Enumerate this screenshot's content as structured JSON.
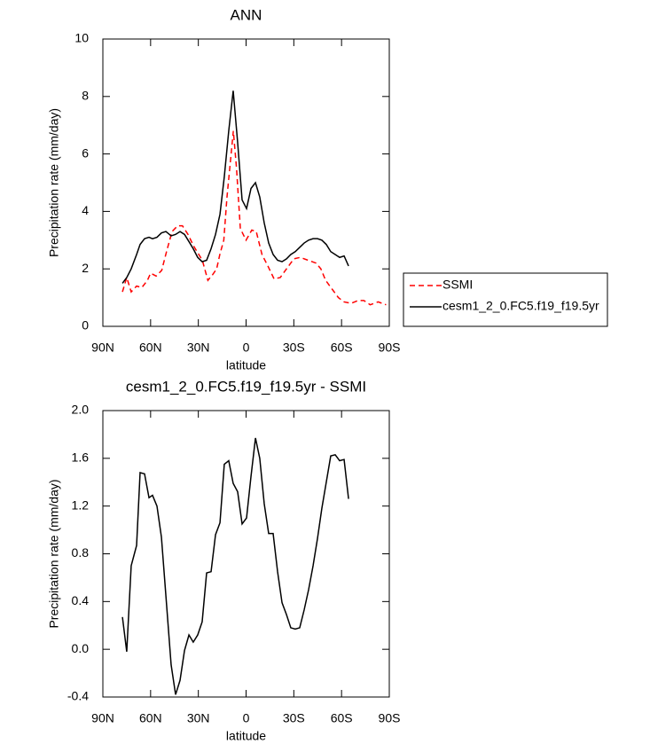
{
  "chart_data": [
    {
      "type": "line",
      "title": "ANN",
      "x_label": "latitude",
      "y_label": "Precipitation rate (mm/day)",
      "xlim": [
        90,
        -90
      ],
      "xticks": [
        {
          "value": 90,
          "label": "90N"
        },
        {
          "value": 60,
          "label": "60N"
        },
        {
          "value": 30,
          "label": "30N"
        },
        0,
        {
          "value": -30,
          "label": "30S"
        },
        {
          "value": -60,
          "label": "60S"
        },
        {
          "value": -90,
          "label": "90S"
        }
      ],
      "ylim": [
        0,
        10
      ],
      "yticks": [
        0,
        2,
        4,
        6,
        8,
        10
      ],
      "legend": "right",
      "series": [
        {
          "name": "SSMI",
          "color": "#ff0000",
          "dashed": true,
          "x": [
            77.7,
            75,
            72.2,
            68.8,
            65.5,
            62,
            60,
            56.5,
            53,
            50,
            46.5,
            43,
            40,
            36.5,
            33,
            27.5,
            24,
            21,
            18.5,
            16.5,
            14,
            12,
            8,
            6,
            3.6,
            0,
            -3.6,
            -6.4,
            -10,
            -13.7,
            -17.6,
            -21.5,
            -25.4,
            -30,
            -34,
            -39,
            -44,
            -47,
            -50,
            -54,
            -58,
            -61.6,
            -66,
            -70.5,
            -74,
            -78,
            -83,
            -88
          ],
          "values": [
            1.2,
            1.7,
            1.2,
            1.4,
            1.35,
            1.6,
            1.85,
            1.75,
            1.95,
            2.6,
            3.3,
            3.5,
            3.5,
            3.2,
            2.8,
            2.3,
            1.6,
            1.8,
            2.0,
            2.5,
            3.0,
            4.5,
            6.8,
            5.5,
            3.4,
            3.0,
            3.35,
            3.3,
            2.5,
            2.1,
            1.65,
            1.7,
            2.0,
            2.35,
            2.4,
            2.3,
            2.2,
            2.0,
            1.6,
            1.3,
            1.0,
            0.85,
            0.8,
            0.9,
            0.9,
            0.75,
            0.85,
            0.75
          ]
        },
        {
          "name": "cesm1_2_0.FC5.f19_f19.5yr",
          "color": "#000000",
          "dashed": false,
          "x": [
            77.7,
            75.0,
            72.2,
            68.8,
            66.6,
            63.8,
            61.0,
            58.8,
            56.0,
            53.2,
            50.4,
            47.1,
            44.3,
            41.5,
            38.7,
            35.9,
            33.2,
            30.4,
            27.6,
            24.8,
            22.0,
            19.2,
            16.4,
            13.7,
            10.9,
            8.1,
            5.3,
            2.5,
            -0.3,
            -3.1,
            -5.9,
            -8.6,
            -11.4,
            -14.2,
            -17.0,
            -19.8,
            -22.6,
            -25.4,
            -28.1,
            -30.9,
            -33.7,
            -36.5,
            -39.3,
            -42.1,
            -44.9,
            -47.6,
            -50.4,
            -53.2,
            -56.0,
            -58.8,
            -61.6,
            -64.4
          ],
          "values": [
            1.5,
            1.7,
            2.0,
            2.5,
            2.85,
            3.05,
            3.1,
            3.05,
            3.1,
            3.25,
            3.3,
            3.15,
            3.2,
            3.3,
            3.2,
            2.95,
            2.7,
            2.4,
            2.25,
            2.3,
            2.7,
            3.2,
            3.9,
            5.2,
            6.8,
            8.2,
            6.4,
            4.4,
            4.1,
            4.8,
            5.0,
            4.5,
            3.6,
            2.9,
            2.5,
            2.3,
            2.25,
            2.35,
            2.5,
            2.6,
            2.75,
            2.9,
            3.0,
            3.05,
            3.05,
            3.0,
            2.85,
            2.6,
            2.5,
            2.4,
            2.45,
            2.1
          ]
        }
      ]
    },
    {
      "type": "line",
      "title": "cesm1_2_0.FC5.f19_f19.5yr - SSMI",
      "x_label": "latitude",
      "y_label": "Precipitation rate (mm/day)",
      "xlim": [
        90,
        -90
      ],
      "xticks": [
        {
          "value": 90,
          "label": "90N"
        },
        {
          "value": 60,
          "label": "60N"
        },
        {
          "value": 30,
          "label": "30N"
        },
        0,
        {
          "value": -30,
          "label": "30S"
        },
        {
          "value": -60,
          "label": "60S"
        },
        {
          "value": -90,
          "label": "90S"
        }
      ],
      "ylim": [
        -0.4,
        2.0
      ],
      "yticks": [
        -0.4,
        {
          "value": 0,
          "label": "0.0"
        },
        0.4,
        0.8,
        1.2,
        1.6,
        {
          "value": 2,
          "label": "2.0"
        }
      ],
      "series": [
        {
          "color": "#000000",
          "dashed": false,
          "x": [
            77.7,
            75.0,
            72.2,
            68.8,
            66.6,
            63.8,
            61.0,
            58.8,
            56.0,
            53.2,
            50.4,
            47.1,
            44.3,
            41.5,
            38.7,
            35.9,
            33.2,
            30.4,
            27.6,
            24.8,
            22.0,
            19.2,
            16.4,
            13.7,
            10.9,
            8.1,
            5.3,
            2.5,
            -0.3,
            -3.1,
            -5.9,
            -8.6,
            -11.4,
            -14.2,
            -17.0,
            -19.8,
            -22.6,
            -25.4,
            -28.1,
            -30.9,
            -33.7,
            -36.5,
            -39.3,
            -42.1,
            -44.9,
            -47.6,
            -50.4,
            -53.2,
            -56.0,
            -58.8,
            -61.6,
            -64.4
          ],
          "values": [
            0.27,
            -0.02,
            0.7,
            0.87,
            1.48,
            1.47,
            1.27,
            1.29,
            1.2,
            0.94,
            0.45,
            -0.13,
            -0.38,
            -0.26,
            -0.01,
            0.12,
            0.06,
            0.12,
            0.23,
            0.64,
            0.65,
            0.96,
            1.06,
            1.55,
            1.58,
            1.39,
            1.32,
            1.05,
            1.1,
            1.45,
            1.77,
            1.6,
            1.22,
            0.97,
            0.97,
            0.65,
            0.39,
            0.29,
            0.18,
            0.17,
            0.18,
            0.33,
            0.5,
            0.7,
            0.93,
            1.18,
            1.4,
            1.62,
            1.63,
            1.58,
            1.59,
            1.26
          ]
        }
      ]
    }
  ]
}
